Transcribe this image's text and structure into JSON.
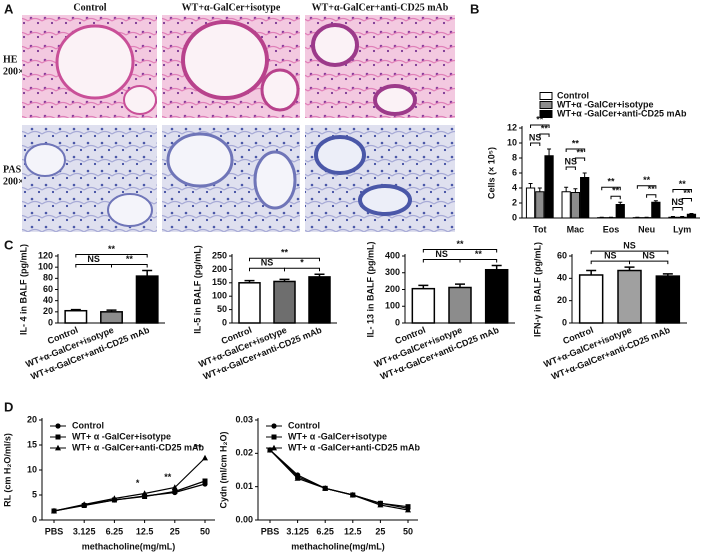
{
  "panel_a": {
    "panel": "A",
    "columns": [
      "Control",
      "WT+α-GalCer+isotype",
      "WT+α-GalCer+anti-CD25 mAb"
    ],
    "rows": [
      [
        "HE",
        "200×"
      ],
      [
        "PAS",
        "200×"
      ]
    ]
  },
  "chart_data": [
    {
      "type": "bar",
      "panel": "B",
      "ylabel": "Cells (× 10⁵)",
      "categories": [
        "Tot",
        "Mac",
        "Eos",
        "Neu",
        "Lym"
      ],
      "series": [
        {
          "name": "Control",
          "color": "#ffffff",
          "values": [
            4.0,
            3.5,
            0.05,
            0.05,
            0.1
          ],
          "errors": [
            0.6,
            0.6,
            0.05,
            0.05,
            0.1
          ]
        },
        {
          "name": "WT+α -GalCer+isotype",
          "color": "#8c8c8c",
          "values": [
            3.5,
            3.4,
            0.05,
            0.05,
            0.1
          ],
          "errors": [
            0.5,
            0.5,
            0.05,
            0.05,
            0.1
          ]
        },
        {
          "name": "WT+α -GalCer+anti-CD25 mAb",
          "color": "#000000",
          "values": [
            8.3,
            5.4,
            1.8,
            2.1,
            0.5
          ],
          "errors": [
            0.9,
            0.6,
            0.3,
            0.2,
            0.1
          ]
        }
      ],
      "annotations": [
        [
          "NS",
          "**",
          "**"
        ],
        [
          "NS",
          "**",
          "**"
        ],
        [
          "**",
          "**"
        ],
        [
          "**",
          "**"
        ],
        [
          "NS",
          "**",
          "**"
        ]
      ],
      "ylim": [
        0,
        12
      ],
      "yticks": [
        0,
        2,
        4,
        6,
        8,
        10,
        12
      ]
    },
    {
      "type": "bar",
      "panel": "C",
      "ylabel": "IL- 4 in BALF (pg/mL)",
      "categories": [
        "Control",
        "WT+α-GalCer+isotype",
        "WT+α-GalCer+anti-CD25 mAb"
      ],
      "colors": [
        "#ffffff",
        "#8c8c8c",
        "#000000"
      ],
      "values": [
        22,
        20,
        84
      ],
      "errors": [
        2,
        3,
        10
      ],
      "annotations": [
        "NS",
        "**",
        "**"
      ],
      "ylim": [
        0,
        120
      ],
      "yticks": [
        0,
        20,
        40,
        60,
        80,
        100,
        120
      ]
    },
    {
      "type": "bar",
      "ylabel": "IL-5 in BALF (pg/mL)",
      "categories": [
        "Control",
        "WT+α-GalCer+isotype",
        "WT+α-GalCer+anti-CD25 mAb"
      ],
      "colors": [
        "#ffffff",
        "#6e6e6e",
        "#000000"
      ],
      "values": [
        150,
        155,
        172
      ],
      "errors": [
        8,
        8,
        10
      ],
      "annotations": [
        "NS",
        "*",
        "**"
      ],
      "ylim": [
        0,
        250
      ],
      "yticks": [
        0,
        50,
        100,
        150,
        200,
        250
      ]
    },
    {
      "type": "bar",
      "ylabel": "IL- 13 in BALF (pg/mL)",
      "categories": [
        "Control",
        "WT+α-GalCer+isotype",
        "WT+α-GalCer+anti-CD25 mAb"
      ],
      "colors": [
        "#ffffff",
        "#8c8c8c",
        "#000000"
      ],
      "values": [
        205,
        212,
        318
      ],
      "errors": [
        20,
        20,
        25
      ],
      "annotations": [
        "NS",
        "**",
        "**"
      ],
      "ylim": [
        0,
        400
      ],
      "yticks": [
        0,
        100,
        200,
        300,
        400
      ]
    },
    {
      "type": "bar",
      "ylabel": "IFN-γ in BALF (pg/mL)",
      "categories": [
        "Control",
        "WT+α-GalCer+isotype",
        "WT+α-GalCer+anti-CD25 mAb"
      ],
      "colors": [
        "#ffffff",
        "#a0a0a0",
        "#000000"
      ],
      "values": [
        43,
        47,
        42
      ],
      "errors": [
        4,
        3,
        2
      ],
      "annotations": [
        "NS",
        "NS",
        "NS"
      ],
      "ylim": [
        0,
        60
      ],
      "yticks": [
        0,
        20,
        40,
        60
      ]
    },
    {
      "type": "line",
      "panel": "D",
      "ylabel": "RL (cm H₂O/ml/s)",
      "xlabel": "methacholine(mg/mL)",
      "categories": [
        "PBS",
        "3.125",
        "6.25",
        "12.5",
        "25",
        "50"
      ],
      "series": [
        {
          "name": "Control",
          "color": "#000000",
          "marker": "circle",
          "values": [
            1.8,
            3.0,
            4.0,
            4.8,
            5.5,
            7.2
          ]
        },
        {
          "name": "WT+ α -GalCer+isotype",
          "color": "#000000",
          "marker": "square",
          "values": [
            1.8,
            2.9,
            4.0,
            4.7,
            5.7,
            7.8
          ]
        },
        {
          "name": "WT+ α -GalCer+anti-CD25 mAb",
          "color": "#000000",
          "marker": "triangle",
          "values": [
            1.8,
            3.1,
            4.3,
            5.3,
            6.5,
            12.4
          ]
        }
      ],
      "annotations": [
        null,
        null,
        null,
        "*",
        "**",
        "**"
      ],
      "ylim": [
        0,
        20
      ],
      "yticks": [
        0,
        5,
        10,
        15,
        20
      ]
    },
    {
      "type": "line",
      "ylabel": "Cydn (ml/cm H₂O)",
      "xlabel": "methacholine(mg/mL)",
      "categories": [
        "PBS",
        "3.125",
        "6.25",
        "12.5",
        "25",
        "50"
      ],
      "series": [
        {
          "name": "Control",
          "color": "#000000",
          "marker": "circle",
          "values": [
            0.021,
            0.0135,
            0.0095,
            0.0075,
            0.005,
            0.0035
          ]
        },
        {
          "name": "WT+ α -GalCer+isotype",
          "color": "#000000",
          "marker": "square",
          "values": [
            0.021,
            0.013,
            0.0095,
            0.0075,
            0.005,
            0.004
          ]
        },
        {
          "name": "WT+ α -GalCer+anti-CD25 mAb",
          "color": "#000000",
          "marker": "triangle",
          "values": [
            0.021,
            0.0125,
            0.0095,
            0.0075,
            0.0045,
            0.003
          ]
        }
      ],
      "ylim": [
        0,
        0.03
      ],
      "yticks": [
        {
          "value": 0,
          "label": "0.00"
        },
        0.01,
        0.02,
        0.03
      ]
    }
  ]
}
